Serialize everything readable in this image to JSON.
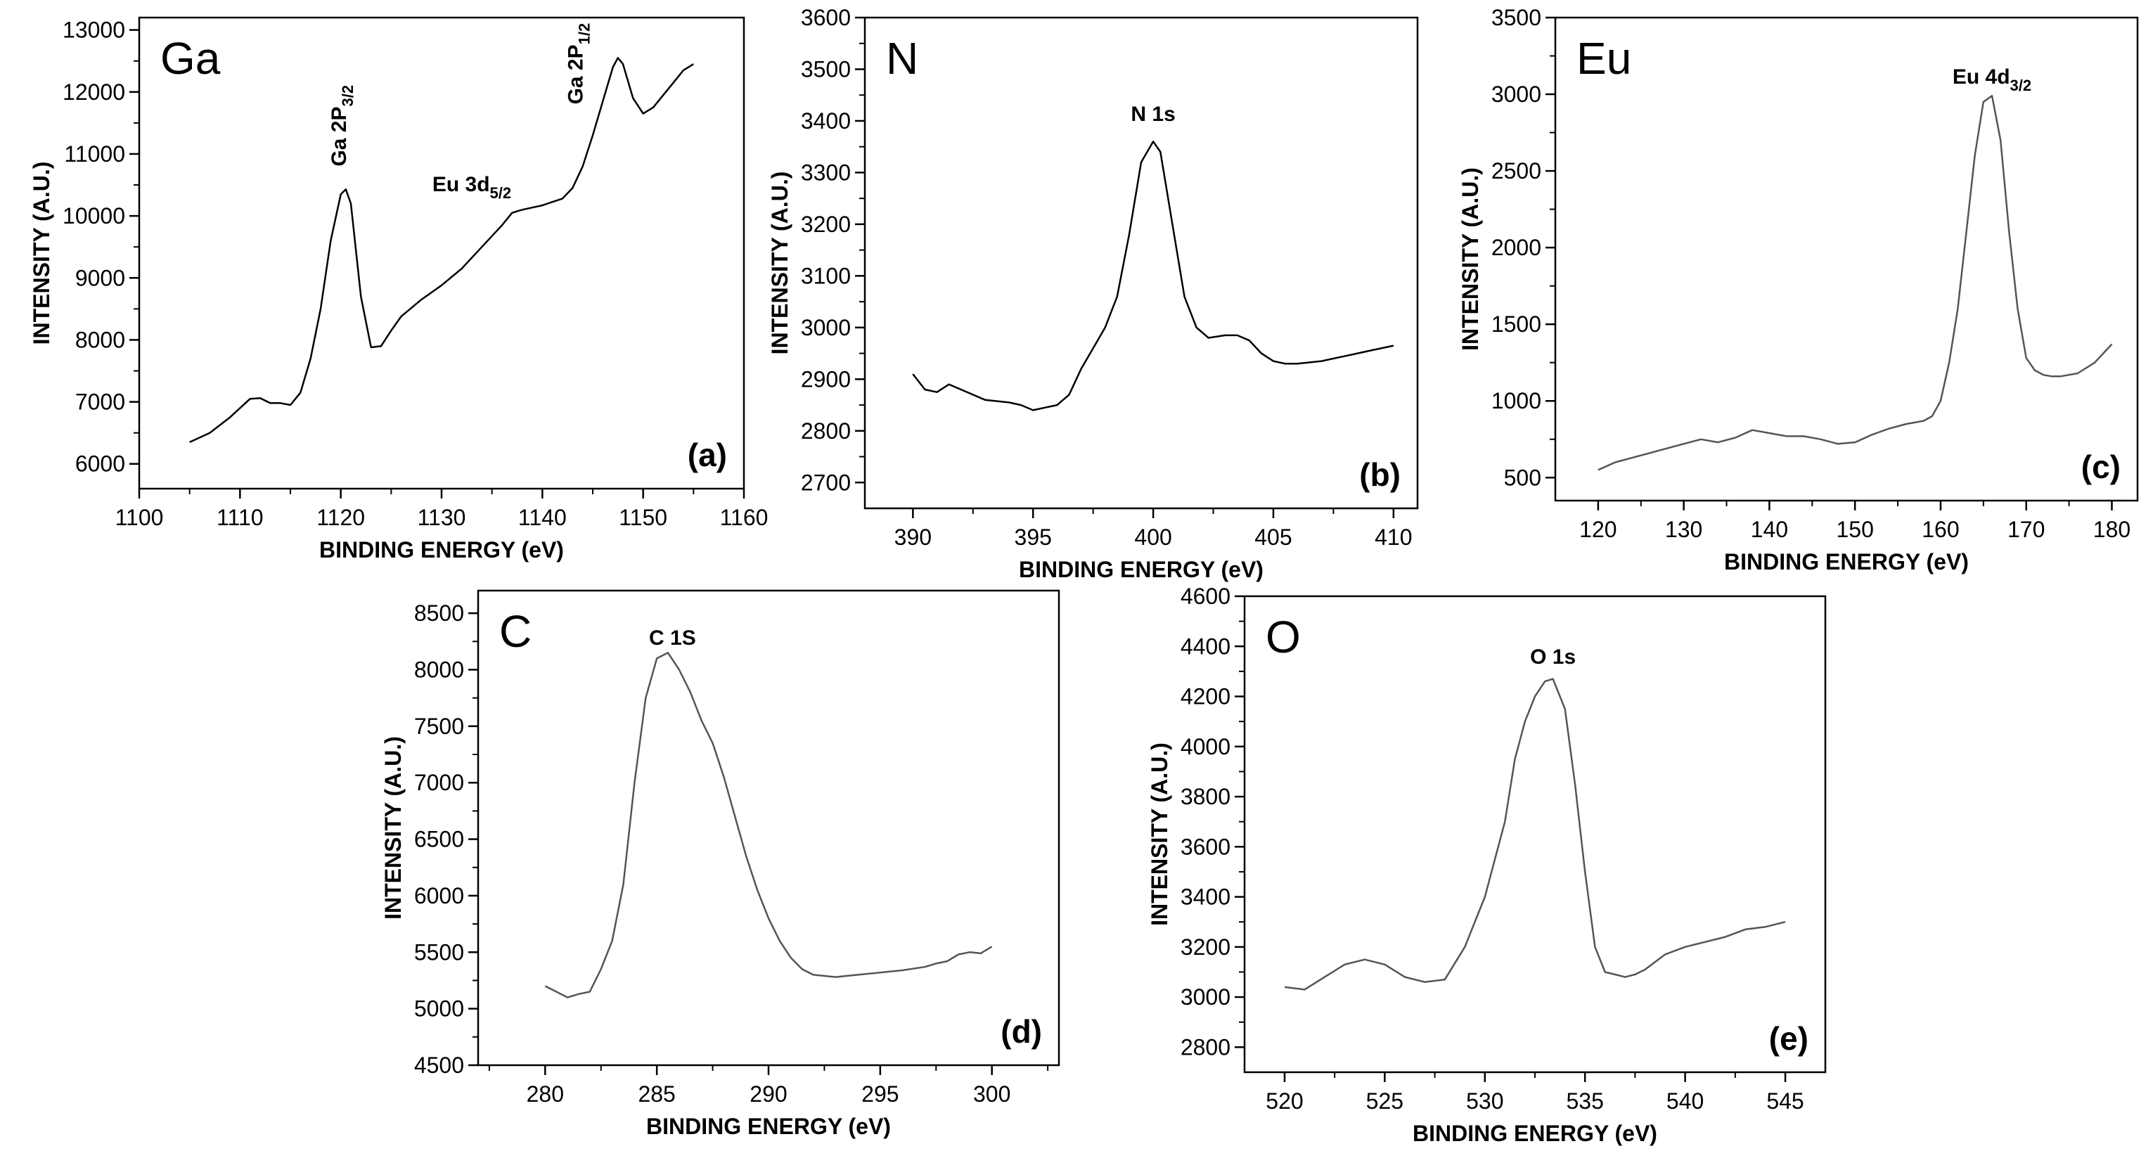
{
  "chart_data": [
    {
      "type": "line",
      "panel_label": "(a)",
      "element_label": "Ga",
      "xlabel": "BINDING ENERGY (eV)",
      "ylabel": "INTENSITY (A.U.)",
      "xlim": [
        1100,
        1160
      ],
      "ylim": [
        5600,
        13200
      ],
      "xticks": [
        "1100",
        "1110",
        "1120",
        "1130",
        "1140",
        "1150",
        "1160"
      ],
      "yticks": [
        "6000",
        "7000",
        "8000",
        "9000",
        "10000",
        "11000",
        "12000",
        "13000"
      ],
      "line_color": "#000000",
      "annotations": [
        {
          "base": "Ga 2P",
          "sub": "3/2",
          "x": 1120.5,
          "y": 10800,
          "rotate": true
        },
        {
          "base": "Eu 3d",
          "sub": "5/2",
          "x": 1133,
          "y": 10400,
          "rotate": false
        },
        {
          "base": "Ga 2P",
          "sub": "1/2",
          "x": 1144,
          "y": 11800,
          "rotate": true
        }
      ],
      "series": [
        {
          "name": "Ga",
          "x": [
            1105,
            1107,
            1109,
            1111,
            1112,
            1113,
            1114,
            1115,
            1116,
            1117,
            1118,
            1119,
            1120,
            1120.5,
            1121,
            1122,
            1123,
            1124,
            1125,
            1126,
            1128,
            1130,
            1132,
            1134,
            1136,
            1137,
            1138,
            1140,
            1142,
            1143,
            1144,
            1145,
            1146,
            1147,
            1147.5,
            1148,
            1149,
            1150,
            1151,
            1152,
            1153,
            1154,
            1155
          ],
          "y": [
            6350,
            6500,
            6750,
            7050,
            7060,
            6980,
            6980,
            6950,
            7150,
            7700,
            8500,
            9600,
            10350,
            10430,
            10200,
            8700,
            7880,
            7900,
            8150,
            8380,
            8650,
            8880,
            9150,
            9500,
            9850,
            10050,
            10100,
            10170,
            10280,
            10450,
            10800,
            11300,
            11850,
            12400,
            12550,
            12450,
            11900,
            11650,
            11750,
            11950,
            12150,
            12350,
            12450
          ]
        }
      ]
    },
    {
      "type": "line",
      "panel_label": "(b)",
      "element_label": "N",
      "xlabel": "BINDING ENERGY (eV)",
      "ylabel": "INTENSITY (A.U.)",
      "xlim": [
        388,
        411
      ],
      "ylim": [
        2650,
        3600
      ],
      "xticks": [
        "390",
        "395",
        "400",
        "405",
        "410"
      ],
      "yticks": [
        "2700",
        "2800",
        "2900",
        "3000",
        "3100",
        "3200",
        "3300",
        "3400",
        "3500",
        "3600"
      ],
      "line_color": "#000000",
      "annotations": [
        {
          "base": "N 1s",
          "sub": "",
          "x": 400,
          "y": 3400,
          "rotate": false
        }
      ],
      "series": [
        {
          "name": "N",
          "x": [
            390,
            390.5,
            391,
            391.5,
            392,
            393,
            394,
            394.5,
            395,
            395.5,
            396,
            396.5,
            397,
            397.5,
            398,
            398.5,
            399,
            399.5,
            400,
            400.3,
            400.8,
            401.3,
            401.8,
            402.3,
            403,
            403.5,
            404,
            404.5,
            405,
            405.5,
            406,
            407,
            408,
            408.5,
            409,
            410
          ],
          "y": [
            2910,
            2880,
            2875,
            2890,
            2880,
            2860,
            2855,
            2850,
            2840,
            2845,
            2850,
            2870,
            2920,
            2960,
            3000,
            3060,
            3180,
            3320,
            3360,
            3340,
            3200,
            3060,
            3000,
            2980,
            2985,
            2985,
            2975,
            2950,
            2935,
            2930,
            2930,
            2935,
            2945,
            2950,
            2955,
            2965
          ]
        }
      ]
    },
    {
      "type": "line",
      "panel_label": "(c)",
      "element_label": "Eu",
      "xlabel": "BINDING ENERGY (eV)",
      "ylabel": "INTENSITY (A.U.)",
      "xlim": [
        115,
        183
      ],
      "ylim": [
        350,
        3500
      ],
      "xticks": [
        "120",
        "130",
        "140",
        "150",
        "160",
        "170",
        "180"
      ],
      "yticks": [
        "500",
        "1000",
        "1500",
        "2000",
        "2500",
        "3000",
        "3500"
      ],
      "line_color": "#555555",
      "annotations": [
        {
          "base": "Eu 4d",
          "sub": "3/2",
          "x": 166,
          "y": 3070,
          "rotate": false
        }
      ],
      "series": [
        {
          "name": "Eu",
          "x": [
            120,
            122,
            124,
            126,
            128,
            130,
            132,
            134,
            136,
            138,
            140,
            142,
            144,
            146,
            148,
            150,
            152,
            154,
            156,
            158,
            159,
            160,
            161,
            162,
            163,
            164,
            165,
            166,
            167,
            168,
            169,
            170,
            171,
            172,
            173,
            174,
            176,
            178,
            180
          ],
          "y": [
            550,
            600,
            630,
            660,
            690,
            720,
            750,
            730,
            760,
            810,
            790,
            770,
            770,
            750,
            720,
            730,
            780,
            820,
            850,
            870,
            900,
            1000,
            1250,
            1600,
            2100,
            2600,
            2950,
            2990,
            2700,
            2100,
            1600,
            1280,
            1200,
            1170,
            1160,
            1160,
            1180,
            1250,
            1370
          ]
        }
      ]
    },
    {
      "type": "line",
      "panel_label": "(d)",
      "element_label": "C",
      "xlabel": "BINDING ENERGY (eV)",
      "ylabel": "INTENSITY (A.U.)",
      "xlim": [
        277,
        303
      ],
      "ylim": [
        4500,
        8700
      ],
      "xticks": [
        "280",
        "285",
        "290",
        "295",
        "300"
      ],
      "yticks": [
        "4500",
        "5000",
        "5500",
        "6000",
        "6500",
        "7000",
        "7500",
        "8000",
        "8500"
      ],
      "line_color": "#555555",
      "annotations": [
        {
          "base": "C 1S",
          "sub": "",
          "x": 285.7,
          "y": 8220,
          "rotate": false
        }
      ],
      "series": [
        {
          "name": "C",
          "x": [
            280,
            280.5,
            281,
            281.5,
            282,
            282.5,
            283,
            283.5,
            284,
            284.5,
            285,
            285.5,
            286,
            286.5,
            287,
            287.5,
            288,
            288.5,
            289,
            289.5,
            290,
            290.5,
            291,
            291.5,
            292,
            293,
            294,
            295,
            296,
            297,
            297.5,
            298,
            298.5,
            299,
            299.5,
            300
          ],
          "y": [
            5200,
            5150,
            5100,
            5130,
            5150,
            5350,
            5600,
            6100,
            7000,
            7750,
            8100,
            8150,
            8000,
            7800,
            7550,
            7350,
            7050,
            6700,
            6350,
            6050,
            5800,
            5600,
            5450,
            5350,
            5300,
            5280,
            5300,
            5320,
            5340,
            5370,
            5400,
            5420,
            5480,
            5500,
            5490,
            5550
          ]
        }
      ]
    },
    {
      "type": "line",
      "panel_label": "(e)",
      "element_label": "O",
      "xlabel": "BINDING ENERGY (eV)",
      "ylabel": "INTENSITY (A.U.)",
      "xlim": [
        518,
        547
      ],
      "ylim": [
        2700,
        4600
      ],
      "xticks": [
        "520",
        "525",
        "530",
        "535",
        "540",
        "545"
      ],
      "yticks": [
        "2800",
        "3000",
        "3200",
        "3400",
        "3600",
        "3800",
        "4000",
        "4200",
        "4400",
        "4600"
      ],
      "line_color": "#555555",
      "annotations": [
        {
          "base": "O 1s",
          "sub": "",
          "x": 533.4,
          "y": 4330,
          "rotate": false
        }
      ],
      "series": [
        {
          "name": "O",
          "x": [
            520,
            521,
            522,
            523,
            524,
            525,
            526,
            527,
            528,
            529,
            530,
            531,
            531.5,
            532,
            532.5,
            533,
            533.4,
            534,
            534.5,
            535,
            535.5,
            536,
            536.5,
            537,
            537.5,
            538,
            539,
            540,
            541,
            542,
            543,
            544,
            545
          ],
          "y": [
            3040,
            3030,
            3080,
            3130,
            3150,
            3130,
            3080,
            3060,
            3070,
            3200,
            3400,
            3700,
            3950,
            4100,
            4200,
            4260,
            4270,
            4150,
            3850,
            3500,
            3200,
            3100,
            3090,
            3080,
            3090,
            3110,
            3170,
            3200,
            3220,
            3240,
            3270,
            3280,
            3300
          ]
        }
      ]
    }
  ]
}
